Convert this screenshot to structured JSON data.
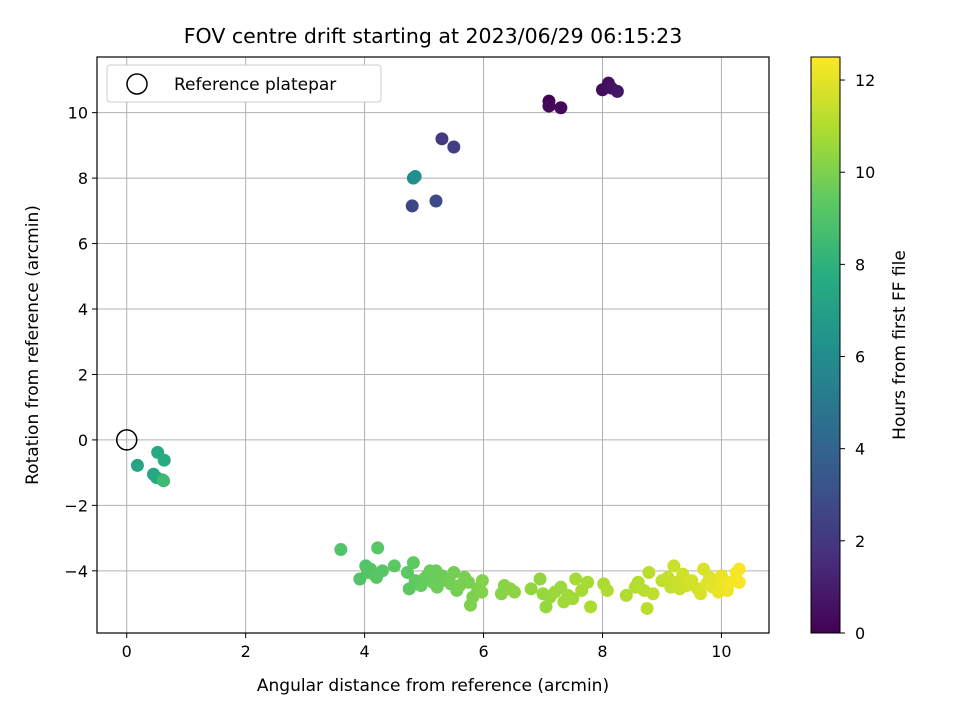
{
  "chart_data": {
    "type": "scatter",
    "title": "FOV centre drift starting at 2023/06/29 06:15:23",
    "xlabel": "Angular distance from reference (arcmin)",
    "ylabel": "Rotation from reference (arcmin)",
    "xlim": [
      -0.5,
      10.8
    ],
    "ylim": [
      -5.9,
      11.7
    ],
    "x_ticks": [
      0,
      2,
      4,
      6,
      8,
      10
    ],
    "y_ticks": [
      -4,
      -2,
      0,
      2,
      4,
      6,
      8,
      10
    ],
    "grid": true,
    "legend": {
      "placement": "top-left",
      "entries": [
        "Reference platepar"
      ]
    },
    "reference": {
      "x": 0,
      "y": 0
    },
    "colorbar": {
      "label": "Hours from first FF file",
      "colormap": "viridis",
      "range": [
        0,
        12.5
      ],
      "ticks": [
        0,
        2,
        4,
        6,
        8,
        10,
        12
      ]
    },
    "points": [
      {
        "x": 7.1,
        "y": 10.35,
        "c": 0.1
      },
      {
        "x": 7.1,
        "y": 10.2,
        "c": 0.2
      },
      {
        "x": 7.3,
        "y": 10.15,
        "c": 0.3
      },
      {
        "x": 8.0,
        "y": 10.7,
        "c": 0.4
      },
      {
        "x": 8.1,
        "y": 10.9,
        "c": 0.5
      },
      {
        "x": 8.15,
        "y": 10.75,
        "c": 0.6
      },
      {
        "x": 8.25,
        "y": 10.65,
        "c": 0.7
      },
      {
        "x": 5.3,
        "y": 9.2,
        "c": 2.1
      },
      {
        "x": 5.5,
        "y": 8.95,
        "c": 2.3
      },
      {
        "x": 4.8,
        "y": 7.15,
        "c": 2.6
      },
      {
        "x": 5.2,
        "y": 7.3,
        "c": 2.8
      },
      {
        "x": 4.82,
        "y": 8.0,
        "c": 6.0
      },
      {
        "x": 4.85,
        "y": 8.05,
        "c": 6.2
      },
      {
        "x": 0.18,
        "y": -0.78,
        "c": 7.3
      },
      {
        "x": 0.45,
        "y": -1.05,
        "c": 7.4
      },
      {
        "x": 0.5,
        "y": -1.15,
        "c": 7.5
      },
      {
        "x": 0.52,
        "y": -0.38,
        "c": 7.6
      },
      {
        "x": 0.63,
        "y": -0.62,
        "c": 7.7
      },
      {
        "x": 0.6,
        "y": -1.22,
        "c": 7.8
      },
      {
        "x": 0.62,
        "y": -1.25,
        "c": 8.5
      },
      {
        "x": 3.6,
        "y": -3.35,
        "c": 9.0
      },
      {
        "x": 3.92,
        "y": -4.25,
        "c": 9.0
      },
      {
        "x": 4.02,
        "y": -3.85,
        "c": 9.0
      },
      {
        "x": 4.05,
        "y": -4.05,
        "c": 9.1
      },
      {
        "x": 4.1,
        "y": -3.95,
        "c": 9.1
      },
      {
        "x": 4.15,
        "y": -4.1,
        "c": 9.1
      },
      {
        "x": 4.2,
        "y": -4.2,
        "c": 9.2
      },
      {
        "x": 4.22,
        "y": -3.3,
        "c": 9.2
      },
      {
        "x": 4.3,
        "y": -4.0,
        "c": 9.2
      },
      {
        "x": 4.5,
        "y": -3.85,
        "c": 9.3
      },
      {
        "x": 4.72,
        "y": -4.05,
        "c": 9.3
      },
      {
        "x": 4.75,
        "y": -4.55,
        "c": 9.3
      },
      {
        "x": 4.82,
        "y": -3.75,
        "c": 9.4
      },
      {
        "x": 4.85,
        "y": -4.3,
        "c": 9.4
      },
      {
        "x": 4.88,
        "y": -4.4,
        "c": 9.4
      },
      {
        "x": 4.95,
        "y": -4.45,
        "c": 9.5
      },
      {
        "x": 5.0,
        "y": -4.25,
        "c": 9.5
      },
      {
        "x": 5.05,
        "y": -4.15,
        "c": 9.5
      },
      {
        "x": 5.1,
        "y": -4.0,
        "c": 9.6
      },
      {
        "x": 5.15,
        "y": -4.35,
        "c": 9.6
      },
      {
        "x": 5.2,
        "y": -4.0,
        "c": 9.6
      },
      {
        "x": 5.22,
        "y": -4.5,
        "c": 9.7
      },
      {
        "x": 5.3,
        "y": -4.15,
        "c": 9.7
      },
      {
        "x": 5.38,
        "y": -4.3,
        "c": 9.7
      },
      {
        "x": 5.45,
        "y": -4.4,
        "c": 9.8
      },
      {
        "x": 5.5,
        "y": -4.05,
        "c": 9.8
      },
      {
        "x": 5.55,
        "y": -4.6,
        "c": 9.8
      },
      {
        "x": 5.6,
        "y": -4.45,
        "c": 9.9
      },
      {
        "x": 5.68,
        "y": -4.2,
        "c": 9.9
      },
      {
        "x": 5.75,
        "y": -4.35,
        "c": 9.9
      },
      {
        "x": 5.78,
        "y": -5.05,
        "c": 10.0
      },
      {
        "x": 5.82,
        "y": -4.8,
        "c": 10.0
      },
      {
        "x": 5.9,
        "y": -4.55,
        "c": 10.0
      },
      {
        "x": 5.97,
        "y": -4.65,
        "c": 10.1
      },
      {
        "x": 5.98,
        "y": -4.3,
        "c": 10.1
      },
      {
        "x": 6.3,
        "y": -4.7,
        "c": 10.2
      },
      {
        "x": 6.35,
        "y": -4.45,
        "c": 10.2
      },
      {
        "x": 6.45,
        "y": -4.55,
        "c": 10.3
      },
      {
        "x": 6.52,
        "y": -4.65,
        "c": 10.3
      },
      {
        "x": 6.8,
        "y": -4.55,
        "c": 10.4
      },
      {
        "x": 6.95,
        "y": -4.25,
        "c": 10.4
      },
      {
        "x": 7.0,
        "y": -4.7,
        "c": 10.5
      },
      {
        "x": 7.05,
        "y": -5.1,
        "c": 10.5
      },
      {
        "x": 7.12,
        "y": -4.8,
        "c": 10.5
      },
      {
        "x": 7.2,
        "y": -4.65,
        "c": 10.6
      },
      {
        "x": 7.3,
        "y": -4.5,
        "c": 10.6
      },
      {
        "x": 7.35,
        "y": -4.95,
        "c": 10.7
      },
      {
        "x": 7.42,
        "y": -4.75,
        "c": 10.7
      },
      {
        "x": 7.5,
        "y": -4.85,
        "c": 10.7
      },
      {
        "x": 7.55,
        "y": -4.25,
        "c": 10.8
      },
      {
        "x": 7.65,
        "y": -4.6,
        "c": 10.8
      },
      {
        "x": 7.75,
        "y": -4.35,
        "c": 10.8
      },
      {
        "x": 7.8,
        "y": -5.1,
        "c": 10.9
      },
      {
        "x": 8.02,
        "y": -4.4,
        "c": 10.9
      },
      {
        "x": 8.08,
        "y": -4.6,
        "c": 11.0
      },
      {
        "x": 8.4,
        "y": -4.75,
        "c": 11.0
      },
      {
        "x": 8.55,
        "y": -4.5,
        "c": 11.1
      },
      {
        "x": 8.6,
        "y": -4.35,
        "c": 11.1
      },
      {
        "x": 8.7,
        "y": -4.6,
        "c": 11.2
      },
      {
        "x": 8.75,
        "y": -5.15,
        "c": 11.2
      },
      {
        "x": 8.78,
        "y": -4.05,
        "c": 11.2
      },
      {
        "x": 8.85,
        "y": -4.7,
        "c": 11.3
      },
      {
        "x": 9.0,
        "y": -4.3,
        "c": 11.3
      },
      {
        "x": 9.1,
        "y": -4.2,
        "c": 11.4
      },
      {
        "x": 9.15,
        "y": -4.5,
        "c": 11.4
      },
      {
        "x": 9.2,
        "y": -3.85,
        "c": 11.5
      },
      {
        "x": 9.25,
        "y": -4.35,
        "c": 11.5
      },
      {
        "x": 9.3,
        "y": -4.55,
        "c": 11.5
      },
      {
        "x": 9.35,
        "y": -4.1,
        "c": 11.6
      },
      {
        "x": 9.42,
        "y": -4.45,
        "c": 11.6
      },
      {
        "x": 9.5,
        "y": -4.3,
        "c": 11.7
      },
      {
        "x": 9.6,
        "y": -4.55,
        "c": 11.7
      },
      {
        "x": 9.65,
        "y": -4.7,
        "c": 11.8
      },
      {
        "x": 9.7,
        "y": -3.95,
        "c": 11.8
      },
      {
        "x": 9.75,
        "y": -4.4,
        "c": 11.9
      },
      {
        "x": 9.8,
        "y": -4.2,
        "c": 11.9
      },
      {
        "x": 9.85,
        "y": -4.5,
        "c": 12.0
      },
      {
        "x": 9.9,
        "y": -4.3,
        "c": 12.0
      },
      {
        "x": 9.95,
        "y": -4.65,
        "c": 12.1
      },
      {
        "x": 10.0,
        "y": -4.15,
        "c": 12.1
      },
      {
        "x": 10.05,
        "y": -4.45,
        "c": 12.2
      },
      {
        "x": 10.1,
        "y": -4.6,
        "c": 12.2
      },
      {
        "x": 10.15,
        "y": -4.35,
        "c": 12.3
      },
      {
        "x": 10.25,
        "y": -4.05,
        "c": 12.3
      },
      {
        "x": 10.3,
        "y": -3.95,
        "c": 12.4
      },
      {
        "x": 10.3,
        "y": -4.35,
        "c": 12.4
      }
    ]
  }
}
